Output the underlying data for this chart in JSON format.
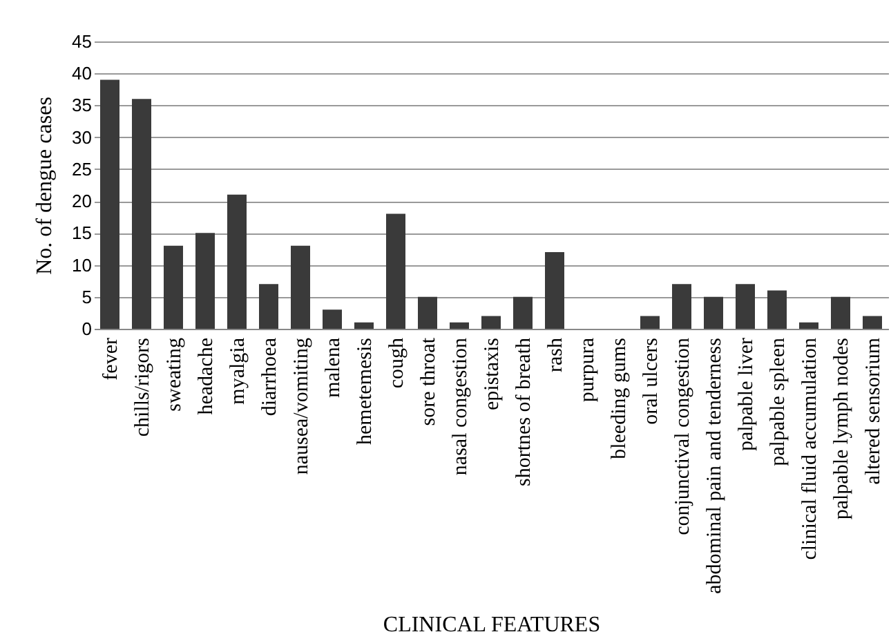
{
  "chart_data": {
    "type": "bar",
    "xlabel": "CLINICAL FEATURES",
    "ylabel": "No. of dengue cases",
    "categories": [
      "fever",
      "chills/rigors",
      "sweating",
      "headache",
      "myalgia",
      "diarrhoea",
      "nausea/vomiting",
      "malena",
      "hemetemesis",
      "cough",
      "sore throat",
      "nasal congestion",
      "epistaxis",
      "shortnes of breath",
      "rash",
      "purpura",
      "bleeding gums",
      "oral ulcers",
      "conjunctival congestion",
      "abdominal pain and tenderness",
      "palpable liver",
      "palpable spleen",
      "clinical fluid accumulation",
      "palpable lymph nodes",
      "altered sensorium"
    ],
    "values": [
      39,
      36,
      13,
      15,
      21,
      7,
      13,
      3,
      1,
      18,
      5,
      1,
      2,
      5,
      12,
      0,
      0,
      2,
      7,
      5,
      7,
      6,
      1,
      5,
      2
    ],
    "color": "#3a3a3a",
    "ylim": [
      0,
      45
    ],
    "yticks": [
      0,
      5,
      10,
      15,
      20,
      25,
      30,
      35,
      40,
      45
    ],
    "grid": "y"
  }
}
